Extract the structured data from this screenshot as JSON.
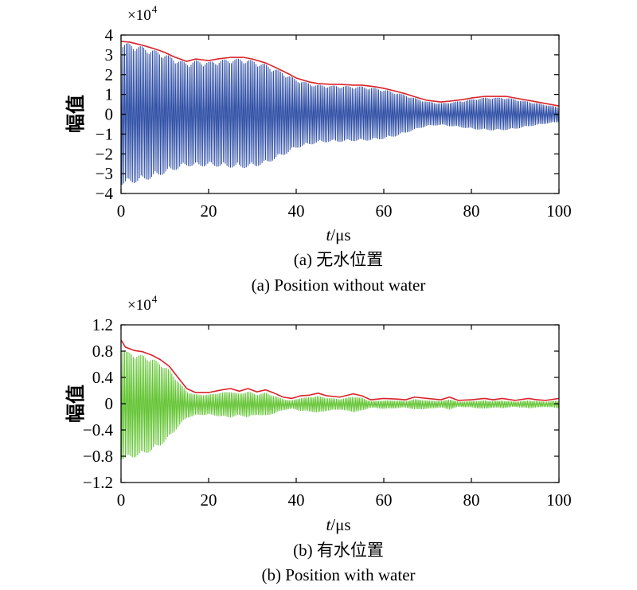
{
  "chart_data": [
    {
      "type": "line",
      "multiplier": {
        "base": "×10",
        "exponent": "4"
      },
      "ylabel": "幅值",
      "xlabel": {
        "var": "t",
        "unit": "/μs"
      },
      "xlim": [
        0,
        100
      ],
      "ylim": [
        -4,
        4
      ],
      "xticks": [
        0,
        20,
        40,
        60,
        80,
        100
      ],
      "xticklabels": [
        "0",
        "20",
        "40",
        "60",
        "80",
        "100"
      ],
      "yticks": [
        4,
        3,
        2,
        1,
        0,
        -1,
        -2,
        -3,
        -4
      ],
      "yticklabels": [
        "4",
        "3",
        "2",
        "1",
        "0",
        "−1",
        "−2",
        "−3",
        "−4"
      ],
      "caption_cn": "(a) 无水位置",
      "caption_en": "(a) Position without water",
      "x": [
        0,
        2,
        5,
        8,
        10,
        12,
        15,
        17,
        20,
        22,
        25,
        28,
        30,
        33,
        35,
        38,
        40,
        43,
        45,
        48,
        50,
        53,
        55,
        58,
        60,
        63,
        65,
        68,
        70,
        73,
        75,
        78,
        80,
        83,
        85,
        88,
        90,
        93,
        95,
        98,
        100
      ],
      "signal": {
        "color": "#2f4fa6",
        "upper": [
          3.62,
          3.58,
          3.42,
          3.22,
          3.06,
          2.85,
          2.61,
          2.73,
          2.65,
          2.73,
          2.81,
          2.81,
          2.73,
          2.53,
          2.33,
          2.01,
          1.77,
          1.57,
          1.49,
          1.45,
          1.45,
          1.41,
          1.41,
          1.33,
          1.25,
          1.09,
          0.97,
          0.76,
          0.64,
          0.56,
          0.6,
          0.68,
          0.76,
          0.84,
          0.84,
          0.84,
          0.76,
          0.64,
          0.56,
          0.44,
          0.36
        ],
        "lower": [
          -3.58,
          -3.52,
          -3.38,
          -3.18,
          -3.0,
          -2.85,
          -2.62,
          -2.65,
          -2.62,
          -2.65,
          -2.7,
          -2.72,
          -2.68,
          -2.52,
          -2.3,
          -1.98,
          -1.72,
          -1.55,
          -1.45,
          -1.4,
          -1.4,
          -1.36,
          -1.35,
          -1.3,
          -1.25,
          -1.1,
          -0.95,
          -0.72,
          -0.6,
          -0.55,
          -0.6,
          -0.68,
          -0.75,
          -0.8,
          -0.82,
          -0.8,
          -0.75,
          -0.62,
          -0.55,
          -0.45,
          -0.4
        ]
      },
      "envelope": {
        "color": "#d8232a",
        "values": [
          3.68,
          3.64,
          3.48,
          3.28,
          3.12,
          2.91,
          2.67,
          2.79,
          2.71,
          2.79,
          2.87,
          2.87,
          2.79,
          2.59,
          2.39,
          2.07,
          1.83,
          1.63,
          1.55,
          1.51,
          1.51,
          1.47,
          1.47,
          1.39,
          1.31,
          1.15,
          1.03,
          0.82,
          0.7,
          0.62,
          0.66,
          0.74,
          0.82,
          0.9,
          0.9,
          0.9,
          0.82,
          0.7,
          0.62,
          0.5,
          0.42
        ]
      }
    },
    {
      "type": "line",
      "multiplier": {
        "base": "×10",
        "exponent": "4"
      },
      "ylabel": "幅值",
      "xlabel": {
        "var": "t",
        "unit": "/μs"
      },
      "xlim": [
        0,
        100
      ],
      "ylim": [
        -1.2,
        1.2
      ],
      "xticks": [
        0,
        20,
        40,
        60,
        80,
        100
      ],
      "xticklabels": [
        "0",
        "20",
        "40",
        "60",
        "80",
        "100"
      ],
      "yticks": [
        1.2,
        0.8,
        0.4,
        0,
        -0.4,
        -0.8,
        -1.2
      ],
      "yticklabels": [
        "1.2",
        "0.8",
        "0.4",
        "0",
        "−0.4",
        "−0.8",
        "−1.2"
      ],
      "caption_cn": "(b) 有水位置",
      "caption_en": "(b) Position with water",
      "x": [
        0,
        1,
        3,
        5,
        7,
        9,
        11,
        13,
        15,
        17,
        20,
        23,
        25,
        27,
        29,
        31,
        33,
        35,
        37,
        39,
        41,
        43,
        45,
        47,
        50,
        53,
        55,
        57,
        60,
        63,
        65,
        67,
        70,
        73,
        75,
        77,
        80,
        83,
        85,
        87,
        90,
        93,
        95,
        97,
        100
      ],
      "signal": {
        "color": "#63c433",
        "upper": [
          0.9,
          0.8,
          0.76,
          0.74,
          0.69,
          0.62,
          0.52,
          0.35,
          0.19,
          0.14,
          0.14,
          0.17,
          0.19,
          0.15,
          0.19,
          0.14,
          0.17,
          0.12,
          0.07,
          0.05,
          0.09,
          0.1,
          0.12,
          0.09,
          0.07,
          0.11,
          0.09,
          0.04,
          0.05,
          0.05,
          0.04,
          0.07,
          0.05,
          0.04,
          0.07,
          0.03,
          0.04,
          0.05,
          0.04,
          0.05,
          0.03,
          0.05,
          0.04,
          0.03,
          0.05
        ],
        "lower": [
          -0.85,
          -0.86,
          -0.82,
          -0.78,
          -0.72,
          -0.64,
          -0.52,
          -0.36,
          -0.22,
          -0.18,
          -0.17,
          -0.2,
          -0.21,
          -0.18,
          -0.21,
          -0.17,
          -0.19,
          -0.15,
          -0.1,
          -0.08,
          -0.11,
          -0.12,
          -0.14,
          -0.11,
          -0.09,
          -0.13,
          -0.11,
          -0.06,
          -0.08,
          -0.07,
          -0.06,
          -0.09,
          -0.08,
          -0.06,
          -0.09,
          -0.05,
          -0.06,
          -0.08,
          -0.06,
          -0.07,
          -0.05,
          -0.07,
          -0.06,
          -0.05,
          -0.07
        ]
      },
      "envelope": {
        "color": "#d8232a",
        "values": [
          0.97,
          0.86,
          0.81,
          0.79,
          0.74,
          0.67,
          0.57,
          0.4,
          0.23,
          0.17,
          0.17,
          0.21,
          0.23,
          0.19,
          0.23,
          0.18,
          0.21,
          0.16,
          0.1,
          0.08,
          0.12,
          0.13,
          0.16,
          0.12,
          0.1,
          0.15,
          0.12,
          0.06,
          0.08,
          0.07,
          0.06,
          0.1,
          0.08,
          0.06,
          0.1,
          0.05,
          0.06,
          0.08,
          0.06,
          0.08,
          0.05,
          0.08,
          0.06,
          0.05,
          0.08
        ]
      }
    }
  ]
}
